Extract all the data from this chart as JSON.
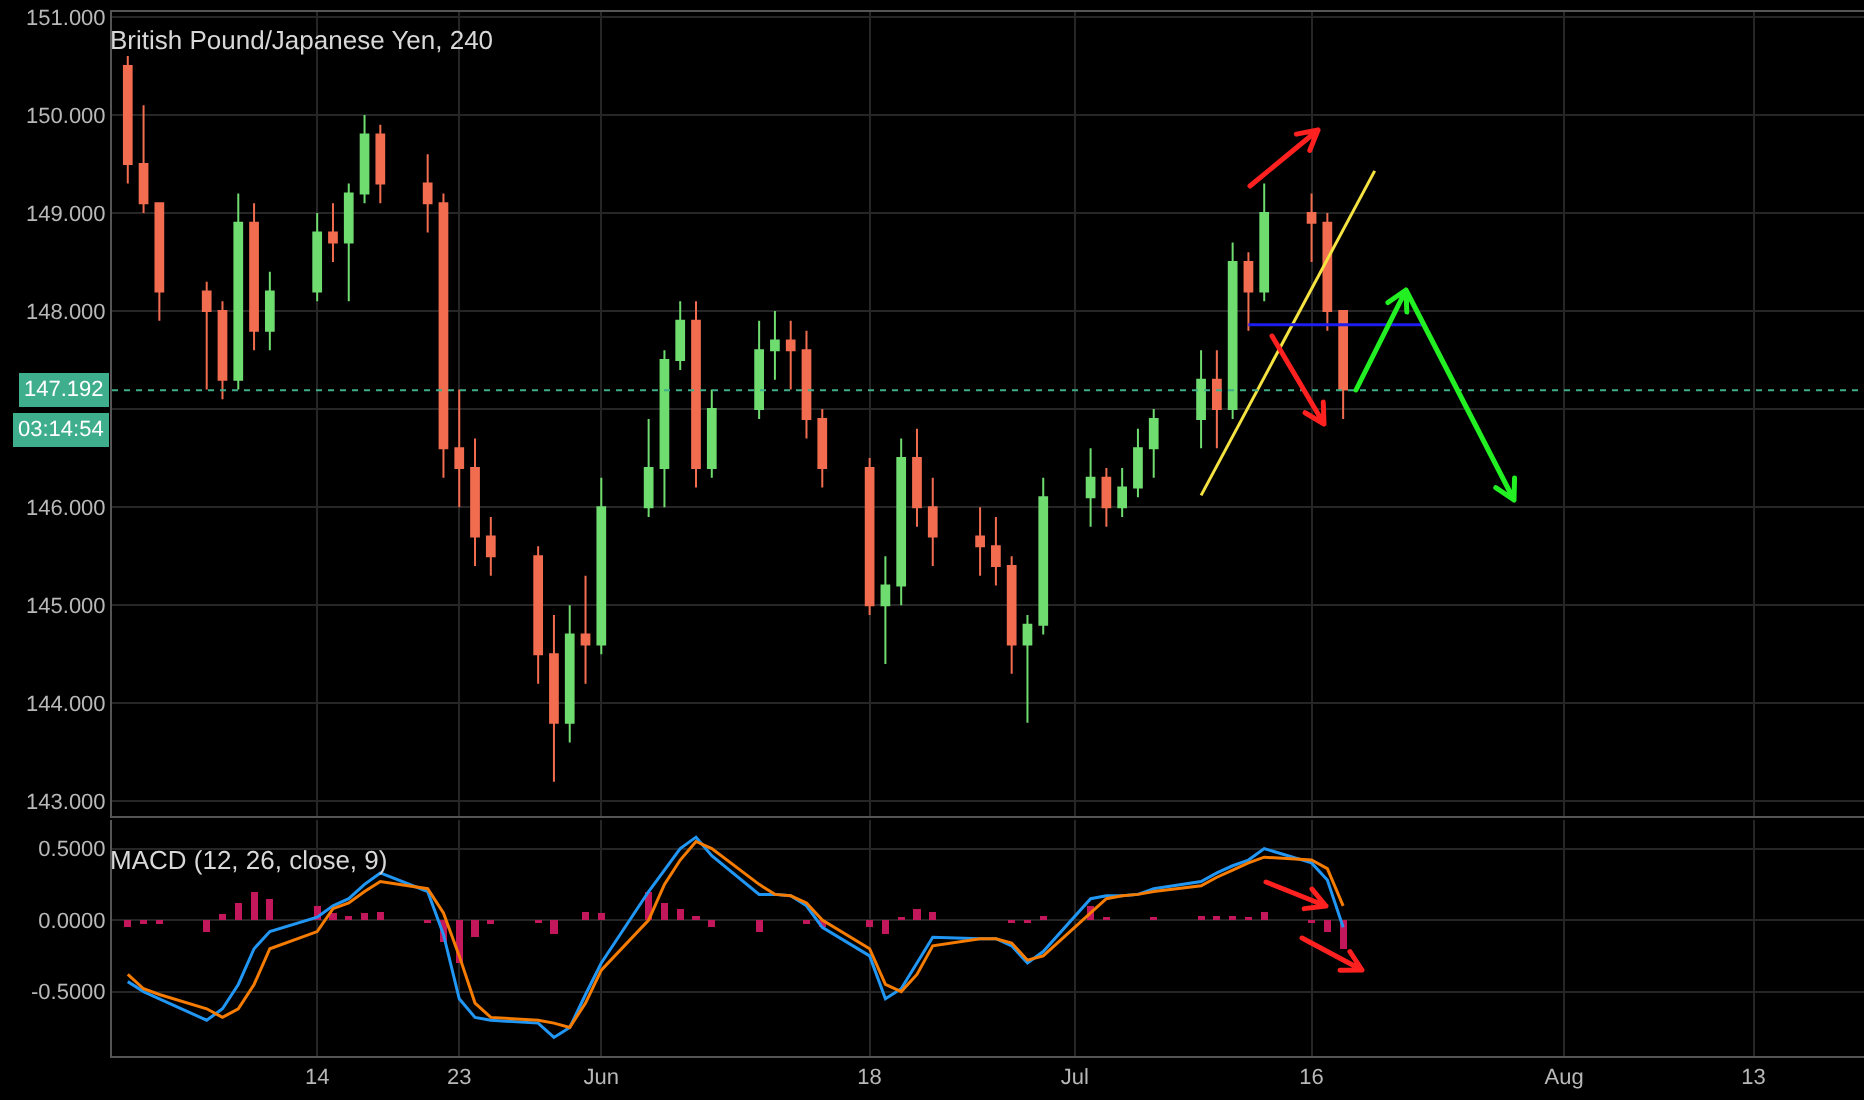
{
  "chart_data": [
    {
      "type": "candlestick",
      "title": "British Pound/Japanese Yen, 240",
      "x": [
        "--05-02",
        "--05-03",
        "--05-04",
        "--05-07",
        "--05-08",
        "--05-09",
        "--05-10",
        "--05-11",
        "--05-14",
        "--05-15",
        "--05-16",
        "--05-17",
        "--05-18",
        "--05-21",
        "--05-22",
        "--05-23",
        "--05-24",
        "--05-25",
        "--05-28",
        "--05-29",
        "--05-30",
        "--05-31",
        "--06-01",
        "--06-04",
        "--06-05",
        "--06-06",
        "--06-07",
        "--06-08",
        "--06-11",
        "--06-12",
        "--06-13",
        "--06-14",
        "--06-15",
        "--06-18",
        "--06-19",
        "--06-20",
        "--06-21",
        "--06-22",
        "--06-25",
        "--06-26",
        "--06-27",
        "--06-28",
        "--06-29",
        "--07-02",
        "--07-03",
        "--07-04",
        "--07-05",
        "--07-06",
        "--07-09",
        "--07-10",
        "--07-11",
        "--07-12",
        "--07-13",
        "--07-16",
        "--07-17",
        "--07-18"
      ],
      "ohlc": [
        [
          150.5,
          150.6,
          149.3,
          149.5
        ],
        [
          149.5,
          150.1,
          149.0,
          149.1
        ],
        [
          149.1,
          149.1,
          147.9,
          148.2
        ],
        [
          148.2,
          148.3,
          147.2,
          148.0
        ],
        [
          148.0,
          148.1,
          147.1,
          147.3
        ],
        [
          147.3,
          149.2,
          147.2,
          148.9
        ],
        [
          148.9,
          149.1,
          147.6,
          147.8
        ],
        [
          147.8,
          148.4,
          147.6,
          148.2
        ],
        [
          148.2,
          149.0,
          148.1,
          148.8
        ],
        [
          148.8,
          149.1,
          148.5,
          148.7
        ],
        [
          148.7,
          149.3,
          148.1,
          149.2
        ],
        [
          149.2,
          150.0,
          149.1,
          149.8
        ],
        [
          149.8,
          149.9,
          149.1,
          149.3
        ],
        [
          149.3,
          149.6,
          148.8,
          149.1
        ],
        [
          149.1,
          149.2,
          146.3,
          146.6
        ],
        [
          146.6,
          147.2,
          146.0,
          146.4
        ],
        [
          146.4,
          146.7,
          145.4,
          145.7
        ],
        [
          145.7,
          145.9,
          145.3,
          145.5
        ],
        [
          145.5,
          145.6,
          144.2,
          144.5
        ],
        [
          144.5,
          144.9,
          143.2,
          143.8
        ],
        [
          143.8,
          145.0,
          143.6,
          144.7
        ],
        [
          144.7,
          145.3,
          144.2,
          144.6
        ],
        [
          144.6,
          146.3,
          144.5,
          146.0
        ],
        [
          146.0,
          146.9,
          145.9,
          146.4
        ],
        [
          146.4,
          147.6,
          146.0,
          147.5
        ],
        [
          147.5,
          148.1,
          147.4,
          147.9
        ],
        [
          147.9,
          148.1,
          146.2,
          146.4
        ],
        [
          146.4,
          147.2,
          146.3,
          147.0
        ],
        [
          147.0,
          147.9,
          146.9,
          147.6
        ],
        [
          147.6,
          148.0,
          147.3,
          147.7
        ],
        [
          147.7,
          147.9,
          147.2,
          147.6
        ],
        [
          147.6,
          147.8,
          146.7,
          146.9
        ],
        [
          146.9,
          147.0,
          146.2,
          146.4
        ],
        [
          146.4,
          146.5,
          144.9,
          145.0
        ],
        [
          145.0,
          145.5,
          144.4,
          145.2
        ],
        [
          145.2,
          146.7,
          145.0,
          146.5
        ],
        [
          146.5,
          146.8,
          145.8,
          146.0
        ],
        [
          146.0,
          146.3,
          145.4,
          145.7
        ],
        [
          145.7,
          146.0,
          145.3,
          145.6
        ],
        [
          145.6,
          145.9,
          145.2,
          145.4
        ],
        [
          145.4,
          145.5,
          144.3,
          144.6
        ],
        [
          144.6,
          144.9,
          143.8,
          144.8
        ],
        [
          144.8,
          146.3,
          144.7,
          146.1
        ],
        [
          146.1,
          146.6,
          145.8,
          146.3
        ],
        [
          146.3,
          146.4,
          145.8,
          146.0
        ],
        [
          146.0,
          146.4,
          145.9,
          146.2
        ],
        [
          146.2,
          146.8,
          146.1,
          146.6
        ],
        [
          146.6,
          147.0,
          146.3,
          146.9
        ],
        [
          146.9,
          147.6,
          146.6,
          147.3
        ],
        [
          147.3,
          147.6,
          146.6,
          147.0
        ],
        [
          147.0,
          148.7,
          146.9,
          148.5
        ],
        [
          148.5,
          148.6,
          147.8,
          148.2
        ],
        [
          148.2,
          149.3,
          148.1,
          149.0
        ],
        [
          149.0,
          149.2,
          148.5,
          148.9
        ],
        [
          148.9,
          149.0,
          147.8,
          148.0
        ],
        [
          148.0,
          148.0,
          146.9,
          147.2
        ]
      ],
      "series": [
        {
          "type": "line",
          "color": "#f5e342",
          "x": [
            "--07-09",
            "--07-20"
          ],
          "values": [
            146.12,
            149.43
          ]
        },
        {
          "type": "line",
          "color": "#1d1df0",
          "x": [
            "--07-12",
            "--07-23"
          ],
          "values": [
            147.86,
            147.86
          ]
        }
      ],
      "xlim": [
        "--05-01",
        "--08-20"
      ],
      "xticks": [
        {
          "value": "--05-14",
          "label": "14"
        },
        {
          "value": "--05-23",
          "label": "23"
        },
        {
          "value": "--06-01",
          "label": "Jun"
        },
        {
          "value": "--06-18",
          "label": "18"
        },
        {
          "value": "--07-01",
          "label": "Jul"
        },
        {
          "value": "--07-16",
          "label": "16"
        },
        {
          "value": "--08-01",
          "label": "Aug"
        },
        {
          "value": "--08-13",
          "label": "13"
        }
      ],
      "ylim": [
        142.85,
        151.05
      ],
      "yticks": [
        {
          "value": 143,
          "label": "143.000"
        },
        {
          "value": 144,
          "label": "144.000"
        },
        {
          "value": 145,
          "label": "145.000"
        },
        {
          "value": 146,
          "label": "146.000"
        },
        {
          "value": 147,
          "label": null
        },
        {
          "value": 148,
          "label": "148.000"
        },
        {
          "value": 149,
          "label": "149.000"
        },
        {
          "value": 150,
          "label": "150.000"
        },
        {
          "value": 151,
          "label": "151.000"
        }
      ],
      "ref_lines": [
        {
          "axis": "y",
          "value": 147.192,
          "label": "147.192",
          "color": "#3fae8c",
          "line_style": "dotted"
        }
      ],
      "annotations": [
        "03:14:54"
      ],
      "grid": true,
      "tick_labels": "y"
    },
    {
      "type": "line",
      "title": "MACD (12, 26, close, 9)",
      "x": [
        "--05-02",
        "--05-03",
        "--05-04",
        "--05-07",
        "--05-08",
        "--05-09",
        "--05-10",
        "--05-11",
        "--05-14",
        "--05-15",
        "--05-16",
        "--05-17",
        "--05-18",
        "--05-21",
        "--05-22",
        "--05-23",
        "--05-24",
        "--05-25",
        "--05-28",
        "--05-29",
        "--05-30",
        "--05-31",
        "--06-01",
        "--06-04",
        "--06-05",
        "--06-06",
        "--06-07",
        "--06-08",
        "--06-11",
        "--06-12",
        "--06-13",
        "--06-14",
        "--06-15",
        "--06-18",
        "--06-19",
        "--06-20",
        "--06-21",
        "--06-22",
        "--06-25",
        "--06-26",
        "--06-27",
        "--06-28",
        "--06-29",
        "--07-02",
        "--07-03",
        "--07-04",
        "--07-05",
        "--07-06",
        "--07-09",
        "--07-10",
        "--07-11",
        "--07-12",
        "--07-13",
        "--07-16",
        "--07-17",
        "--07-18"
      ],
      "series": [
        {
          "type": "bar",
          "color": "#c2185b",
          "values": [
            -0.05,
            -0.03,
            -0.03,
            -0.08,
            0.04,
            0.12,
            0.2,
            0.15,
            0.1,
            0.05,
            0.03,
            0.05,
            0.06,
            -0.02,
            -0.15,
            -0.3,
            -0.12,
            -0.03,
            -0.02,
            -0.1,
            0.0,
            0.06,
            0.05,
            0.2,
            0.12,
            0.08,
            0.03,
            -0.05,
            -0.08,
            0.0,
            0.0,
            -0.03,
            -0.05,
            -0.05,
            -0.1,
            0.02,
            0.08,
            0.06,
            0.0,
            0.0,
            -0.02,
            -0.02,
            0.03,
            0.1,
            0.02,
            0.0,
            0.0,
            0.02,
            0.03,
            0.03,
            0.03,
            0.02,
            0.06,
            -0.02,
            -0.08,
            -0.2
          ]
        },
        {
          "type": "line",
          "color": "#2196f3",
          "values": [
            -0.43,
            -0.5,
            -0.55,
            -0.7,
            -0.62,
            -0.45,
            -0.2,
            -0.08,
            0.02,
            0.1,
            0.15,
            0.25,
            0.33,
            0.2,
            -0.1,
            -0.55,
            -0.68,
            -0.7,
            -0.72,
            -0.82,
            -0.75,
            -0.52,
            -0.3,
            0.2,
            0.35,
            0.5,
            0.58,
            0.45,
            0.18,
            0.18,
            0.17,
            0.1,
            -0.05,
            -0.25,
            -0.55,
            -0.48,
            -0.3,
            -0.12,
            -0.13,
            -0.13,
            -0.18,
            -0.3,
            -0.22,
            0.15,
            0.17,
            0.17,
            0.18,
            0.22,
            0.27,
            0.33,
            0.38,
            0.42,
            0.5,
            0.4,
            0.28,
            -0.05
          ]
        },
        {
          "type": "line",
          "color": "#f57c00",
          "values": [
            -0.38,
            -0.48,
            -0.52,
            -0.62,
            -0.68,
            -0.62,
            -0.45,
            -0.2,
            -0.08,
            0.08,
            0.12,
            0.2,
            0.27,
            0.22,
            0.05,
            -0.25,
            -0.58,
            -0.68,
            -0.7,
            -0.72,
            -0.75,
            -0.58,
            -0.35,
            0.0,
            0.25,
            0.42,
            0.55,
            0.5,
            0.25,
            0.18,
            0.17,
            0.12,
            0.0,
            -0.2,
            -0.45,
            -0.5,
            -0.38,
            -0.18,
            -0.13,
            -0.13,
            -0.16,
            -0.28,
            -0.25,
            0.05,
            0.15,
            0.17,
            0.18,
            0.2,
            0.24,
            0.3,
            0.35,
            0.4,
            0.44,
            0.42,
            0.36,
            0.1
          ]
        }
      ],
      "xlim": [
        "--05-01",
        "--08-20"
      ],
      "xticks": [
        {
          "value": "--05-14",
          "label": "14"
        },
        {
          "value": "--05-23",
          "label": "23"
        },
        {
          "value": "--06-01",
          "label": "Jun"
        },
        {
          "value": "--06-18",
          "label": "18"
        },
        {
          "value": "--07-01",
          "label": "Jul"
        },
        {
          "value": "--07-16",
          "label": "16"
        },
        {
          "value": "--08-01",
          "label": "Aug"
        },
        {
          "value": "--08-13",
          "label": "13"
        }
      ],
      "ylim": [
        -0.95,
        0.7
      ],
      "yticks": [
        {
          "value": -0.5,
          "label": "-0.5000"
        },
        {
          "value": 0,
          "label": "0.0000"
        },
        {
          "value": 0.5,
          "label": "0.5000"
        }
      ],
      "grid": true
    }
  ]
}
